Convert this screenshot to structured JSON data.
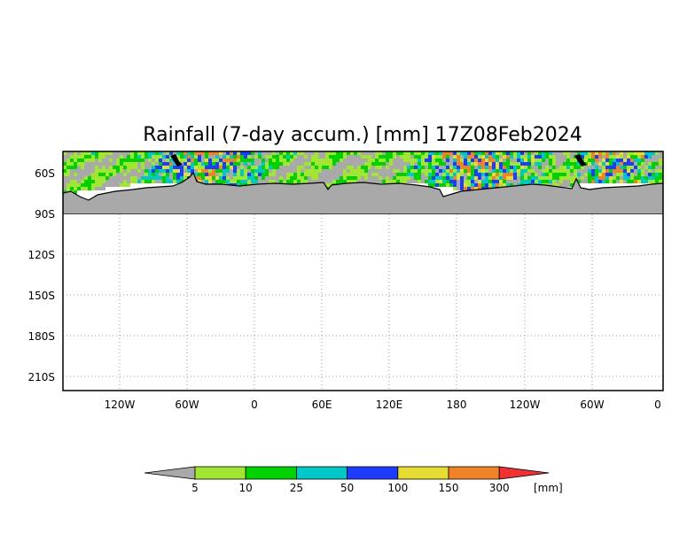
{
  "title": "Rainfall (7-day accum.) [mm] 17Z08Feb2024",
  "map": {
    "lat_labels": [
      "60S",
      "90S",
      "120S",
      "150S",
      "180S",
      "210S"
    ],
    "lon_labels": [
      "120W",
      "60W",
      "0",
      "60E",
      "120E",
      "180",
      "120W",
      "60W",
      "0"
    ],
    "land_color": "#a9a9a9",
    "coastline_color": "#000000",
    "grid_style": "dotted"
  },
  "colorbar": {
    "unit": "[mm]",
    "levels": [
      "5",
      "10",
      "25",
      "50",
      "100",
      "150",
      "300"
    ],
    "colors": [
      "#a9a9a9",
      "#a0e632",
      "#00d200",
      "#00c8c8",
      "#1e3cff",
      "#e6dc32",
      "#f08228",
      "#f03232"
    ]
  }
}
